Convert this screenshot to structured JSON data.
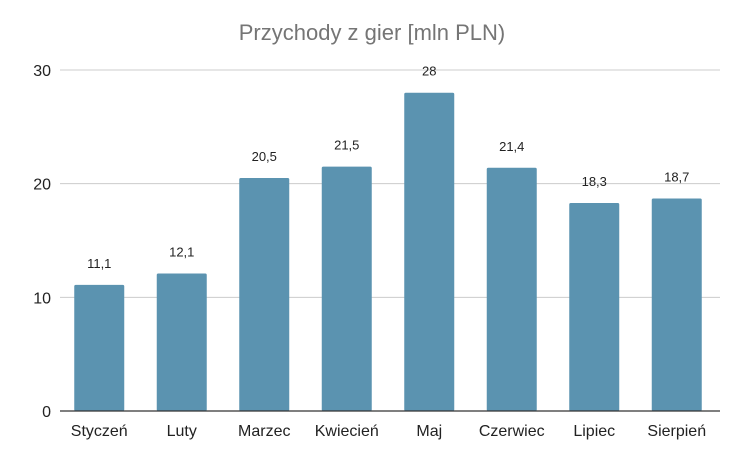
{
  "chart_data": {
    "type": "bar",
    "title": "Przychody z gier [mln PLN)",
    "categories": [
      "Styczeń",
      "Luty",
      "Marzec",
      "Kwiecień",
      "Maj",
      "Czerwiec",
      "Lipiec",
      "Sierpień"
    ],
    "values": [
      11.1,
      12.1,
      20.5,
      21.5,
      28,
      21.4,
      18.3,
      18.7
    ],
    "data_labels": [
      "11,1",
      "12,1",
      "20,5",
      "21,5",
      "28",
      "21,4",
      "18,3",
      "18,7"
    ],
    "yticks": [
      0,
      10,
      20,
      30
    ],
    "ylim": [
      0,
      30
    ],
    "xlabel": "",
    "ylabel": "",
    "grid": true,
    "legend": "none",
    "bar_color": "#5b93b0",
    "grid_color": "#cccccc",
    "axis_color": "#333333"
  }
}
